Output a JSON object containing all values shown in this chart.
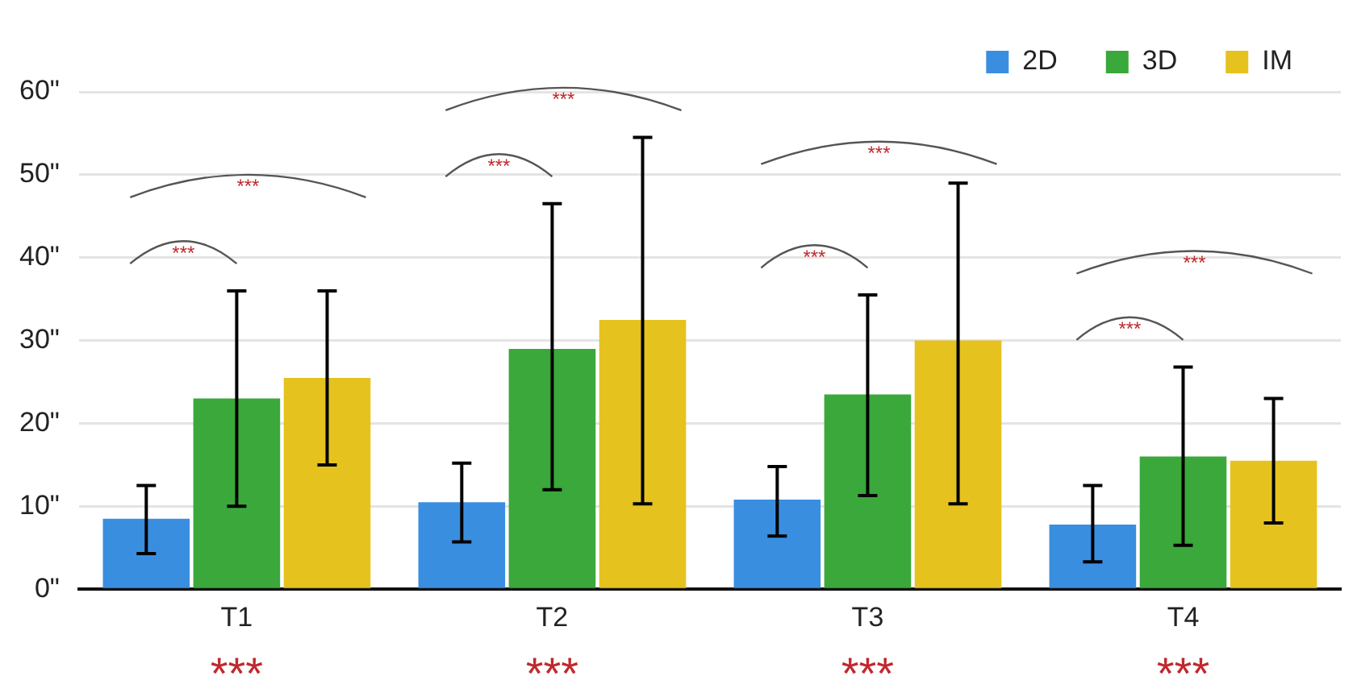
{
  "chart_data": {
    "type": "bar",
    "categories": [
      "T1",
      "T2",
      "T3",
      "T4"
    ],
    "series": [
      {
        "name": "2D",
        "color": "#3a8ee0",
        "values": [
          8.5,
          10.5,
          10.8,
          7.8
        ],
        "errors": [
          [
            4.3,
            12.5
          ],
          [
            5.7,
            15.2
          ],
          [
            6.4,
            14.8
          ],
          [
            3.3,
            12.5
          ]
        ]
      },
      {
        "name": "3D",
        "color": "#3aa83a",
        "values": [
          23,
          29,
          23.5,
          16
        ],
        "errors": [
          [
            10,
            36
          ],
          [
            12,
            46.5
          ],
          [
            11.3,
            35.5
          ],
          [
            5.3,
            26.8
          ]
        ]
      },
      {
        "name": "IM",
        "color": "#e6c21e",
        "values": [
          25.5,
          32.5,
          30,
          15.5
        ],
        "errors": [
          [
            15,
            36
          ],
          [
            10.3,
            54.5
          ],
          [
            10.3,
            49
          ],
          [
            8,
            23
          ]
        ]
      }
    ],
    "ylim": [
      0,
      60
    ],
    "yticks": [
      {
        "value": 0,
        "label": "0\""
      },
      {
        "value": 10,
        "label": "10\""
      },
      {
        "value": 20,
        "label": "20\""
      },
      {
        "value": 30,
        "label": "30\""
      },
      {
        "value": 40,
        "label": "40\""
      },
      {
        "value": 50,
        "label": "50\""
      },
      {
        "value": 60,
        "label": "60\""
      }
    ],
    "grid": "y",
    "legend": "top right",
    "annotations": [
      "***",
      "***",
      "***",
      "***",
      "***",
      "***",
      "***",
      "***",
      "***",
      "***",
      "***",
      "***"
    ]
  }
}
